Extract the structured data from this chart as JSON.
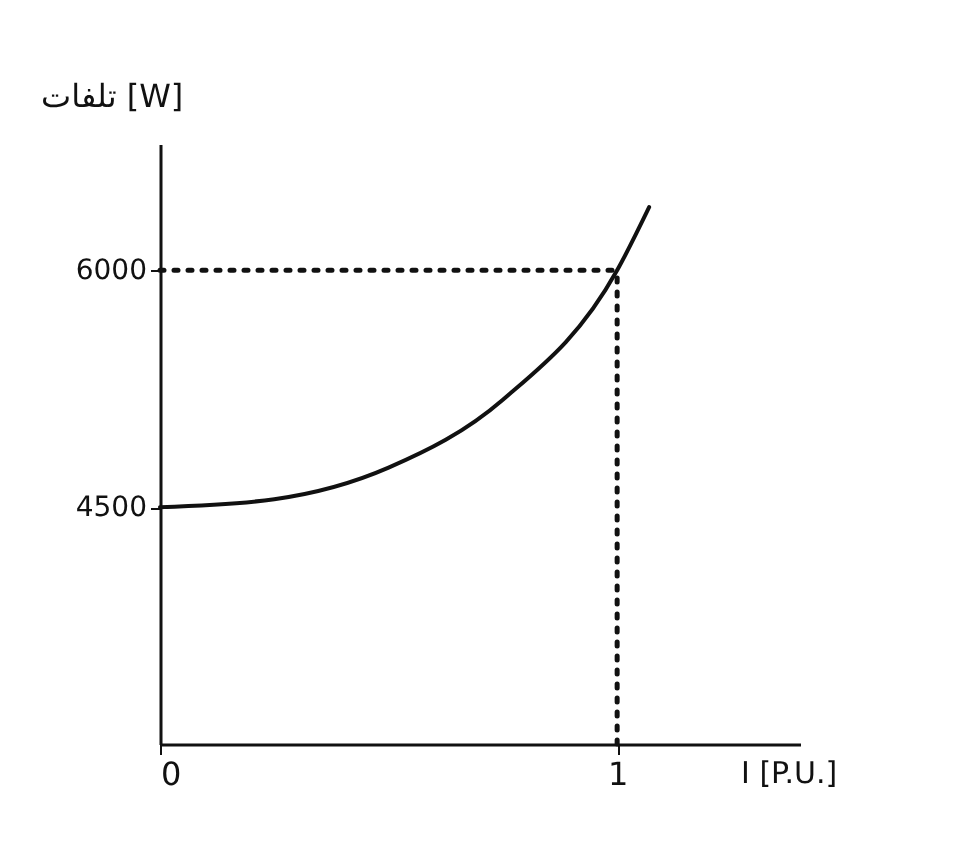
{
  "chart_data": {
    "type": "line",
    "xlabel": "I [P.U.]",
    "ylabel": "تلفات [W]",
    "x": [
      0,
      0.25,
      0.5,
      0.75,
      1,
      1.07
    ],
    "series": [
      {
        "color": "#111111",
        "values": [
          4500,
          4550,
          4750,
          5180,
          6000,
          6400
        ]
      }
    ],
    "xlim": [
      0,
      1.4
    ],
    "ylim": [
      3000,
      6800
    ],
    "xticks": [
      0,
      1
    ],
    "yticks": [
      4500,
      6000
    ],
    "grid": false,
    "marker": "none",
    "line_style": "solid",
    "ref_lines": [
      {
        "axis": "y",
        "value": 6000,
        "line_style": "dotted"
      },
      {
        "axis": "x",
        "value": 1,
        "line_style": "dotted"
      }
    ]
  }
}
